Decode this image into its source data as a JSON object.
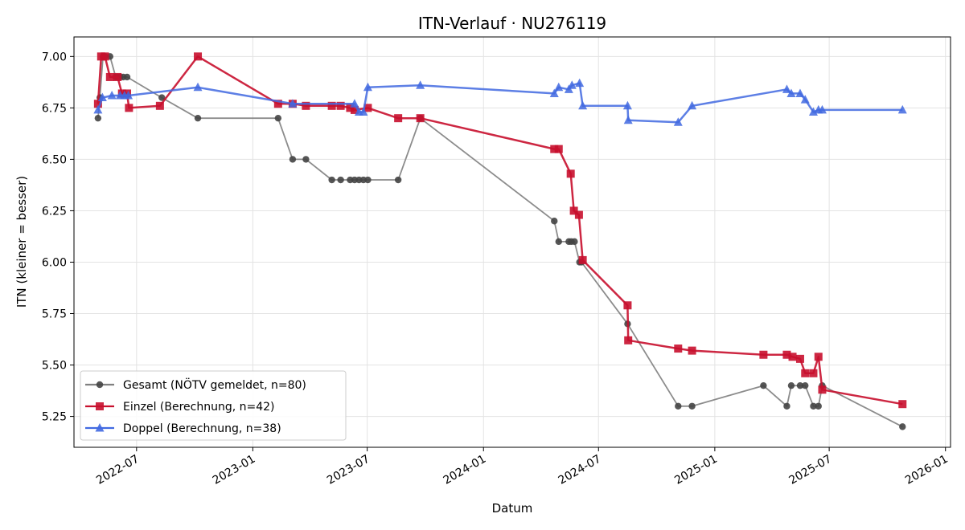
{
  "chart_data": {
    "type": "line",
    "title": "ITN-Verlauf · NU276119",
    "xlabel": "Datum",
    "ylabel": "ITN  (kleiner = besser)",
    "xlim": [
      "2022-03-24",
      "2026-01-09"
    ],
    "ylim": [
      5.1,
      7.095
    ],
    "x_ticks": [
      "2022-07",
      "2023-01",
      "2023-07",
      "2024-01",
      "2024-07",
      "2025-01",
      "2025-07",
      "2026-01"
    ],
    "y_ticks": [
      "5.25",
      "5.50",
      "5.75",
      "6.00",
      "6.25",
      "6.50",
      "6.75",
      "7.00"
    ],
    "grid": true,
    "legend_position": "lower-left",
    "series": [
      {
        "name": "Gesamt (NÖTV gemeldet, n=80)",
        "color": "#444444",
        "line_color": "#808080",
        "marker": "circle",
        "points": [
          [
            "2022-05-01",
            6.7
          ],
          [
            "2022-05-04",
            6.8
          ],
          [
            "2022-05-09",
            7.0
          ],
          [
            "2022-05-12",
            7.0
          ],
          [
            "2022-05-20",
            7.0
          ],
          [
            "2022-05-29",
            6.9
          ],
          [
            "2022-06-01",
            6.9
          ],
          [
            "2022-06-05",
            6.9
          ],
          [
            "2022-06-10",
            6.9
          ],
          [
            "2022-06-16",
            6.9
          ],
          [
            "2022-08-10",
            6.8
          ],
          [
            "2022-10-06",
            6.7
          ],
          [
            "2023-02-10",
            6.7
          ],
          [
            "2023-03-05",
            6.5
          ],
          [
            "2023-03-26",
            6.5
          ],
          [
            "2023-05-06",
            6.4
          ],
          [
            "2023-05-20",
            6.4
          ],
          [
            "2023-06-04",
            6.4
          ],
          [
            "2023-06-11",
            6.4
          ],
          [
            "2023-06-18",
            6.4
          ],
          [
            "2023-06-25",
            6.4
          ],
          [
            "2023-07-02",
            6.4
          ],
          [
            "2023-08-19",
            6.4
          ],
          [
            "2023-09-23",
            6.7
          ],
          [
            "2024-04-22",
            6.2
          ],
          [
            "2024-04-29",
            6.1
          ],
          [
            "2024-05-15",
            6.1
          ],
          [
            "2024-05-19",
            6.1
          ],
          [
            "2024-05-24",
            6.1
          ],
          [
            "2024-06-01",
            6.0
          ],
          [
            "2024-06-04",
            6.0
          ],
          [
            "2024-08-16",
            5.7
          ],
          [
            "2024-11-04",
            5.3
          ],
          [
            "2024-11-26",
            5.3
          ],
          [
            "2025-03-19",
            5.4
          ],
          [
            "2025-04-25",
            5.3
          ],
          [
            "2025-05-02",
            5.4
          ],
          [
            "2025-05-16",
            5.4
          ],
          [
            "2025-05-24",
            5.4
          ],
          [
            "2025-06-06",
            5.3
          ],
          [
            "2025-06-14",
            5.3
          ],
          [
            "2025-06-20",
            5.4
          ],
          [
            "2025-10-25",
            5.2
          ]
        ]
      },
      {
        "name": "Einzel (Berechnung, n=42)",
        "color": "#c8102e",
        "line_color": "#c8102e",
        "marker": "square",
        "points": [
          [
            "2022-05-01",
            6.77
          ],
          [
            "2022-05-06",
            7.0
          ],
          [
            "2022-05-12",
            7.0
          ],
          [
            "2022-05-20",
            6.9
          ],
          [
            "2022-06-01",
            6.9
          ],
          [
            "2022-06-08",
            6.82
          ],
          [
            "2022-06-16",
            6.82
          ],
          [
            "2022-06-19",
            6.75
          ],
          [
            "2022-08-07",
            6.76
          ],
          [
            "2022-10-06",
            7.0
          ],
          [
            "2023-02-10",
            6.77
          ],
          [
            "2023-03-05",
            6.77
          ],
          [
            "2023-03-26",
            6.76
          ],
          [
            "2023-05-06",
            6.76
          ],
          [
            "2023-05-20",
            6.76
          ],
          [
            "2023-06-04",
            6.75
          ],
          [
            "2023-06-11",
            6.74
          ],
          [
            "2023-07-02",
            6.75
          ],
          [
            "2023-08-19",
            6.7
          ],
          [
            "2023-09-23",
            6.7
          ],
          [
            "2024-04-22",
            6.55
          ],
          [
            "2024-04-29",
            6.55
          ],
          [
            "2024-05-18",
            6.43
          ],
          [
            "2024-05-23",
            6.25
          ],
          [
            "2024-05-31",
            6.23
          ],
          [
            "2024-06-06",
            6.01
          ],
          [
            "2024-08-16",
            5.79
          ],
          [
            "2024-08-17",
            5.62
          ],
          [
            "2024-11-04",
            5.58
          ],
          [
            "2024-11-26",
            5.57
          ],
          [
            "2025-03-19",
            5.55
          ],
          [
            "2025-04-25",
            5.55
          ],
          [
            "2025-05-04",
            5.54
          ],
          [
            "2025-05-16",
            5.53
          ],
          [
            "2025-05-24",
            5.46
          ],
          [
            "2025-06-06",
            5.46
          ],
          [
            "2025-06-14",
            5.54
          ],
          [
            "2025-06-20",
            5.38
          ],
          [
            "2025-10-25",
            5.31
          ]
        ]
      },
      {
        "name": "Doppel (Berechnung, n=38)",
        "color": "#4169e1",
        "line_color": "#4169e1",
        "marker": "triangle",
        "points": [
          [
            "2022-05-01",
            6.74
          ],
          [
            "2022-05-08",
            6.8
          ],
          [
            "2022-05-23",
            6.81
          ],
          [
            "2022-06-05",
            6.81
          ],
          [
            "2022-06-12",
            6.81
          ],
          [
            "2022-06-18",
            6.81
          ],
          [
            "2022-10-06",
            6.85
          ],
          [
            "2023-03-05",
            6.77
          ],
          [
            "2023-06-11",
            6.77
          ],
          [
            "2023-06-18",
            6.73
          ],
          [
            "2023-06-25",
            6.73
          ],
          [
            "2023-07-02",
            6.85
          ],
          [
            "2023-09-23",
            6.86
          ],
          [
            "2024-04-22",
            6.82
          ],
          [
            "2024-04-29",
            6.85
          ],
          [
            "2024-05-15",
            6.84
          ],
          [
            "2024-05-20",
            6.86
          ],
          [
            "2024-06-01",
            6.87
          ],
          [
            "2024-06-06",
            6.76
          ],
          [
            "2024-08-16",
            6.76
          ],
          [
            "2024-08-17",
            6.69
          ],
          [
            "2024-11-04",
            6.68
          ],
          [
            "2024-11-26",
            6.76
          ],
          [
            "2025-04-25",
            6.84
          ],
          [
            "2025-05-02",
            6.82
          ],
          [
            "2025-05-16",
            6.82
          ],
          [
            "2025-05-24",
            6.79
          ],
          [
            "2025-06-06",
            6.73
          ],
          [
            "2025-06-14",
            6.74
          ],
          [
            "2025-06-20",
            6.74
          ],
          [
            "2025-10-25",
            6.74
          ]
        ]
      }
    ]
  }
}
